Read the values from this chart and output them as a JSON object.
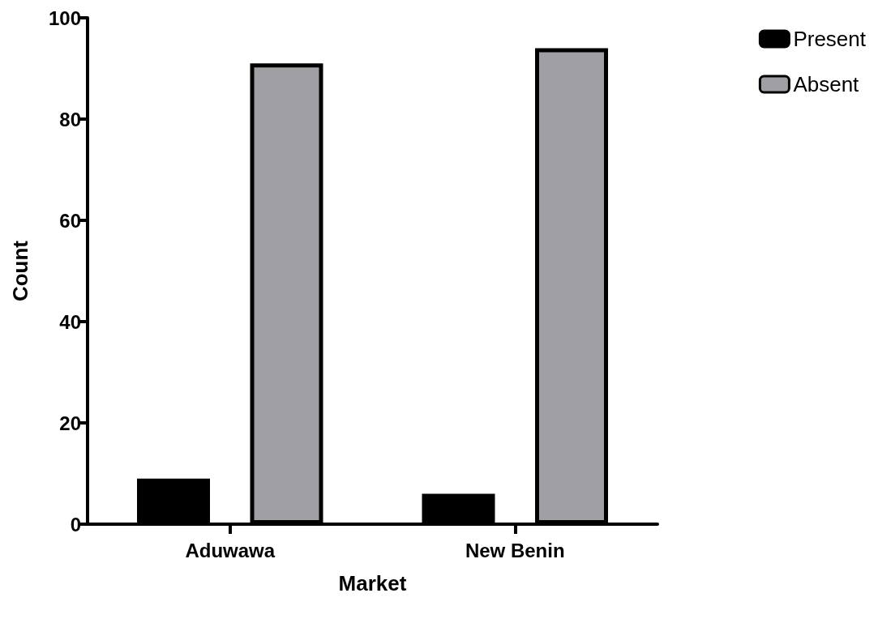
{
  "chart_data": {
    "type": "bar",
    "xlabel": "Market",
    "ylabel": "Count",
    "categories": [
      "Aduwawa",
      "New Benin"
    ],
    "series": [
      {
        "name": "Present",
        "color": "#000000",
        "values": [
          9,
          6
        ]
      },
      {
        "name": "Absent",
        "color": "#a0a0a4",
        "values": [
          91,
          94
        ]
      }
    ],
    "ylim": [
      0,
      100
    ],
    "yticks": [
      0,
      20,
      40,
      60,
      80,
      100
    ],
    "grid": false,
    "legend": "top right"
  }
}
